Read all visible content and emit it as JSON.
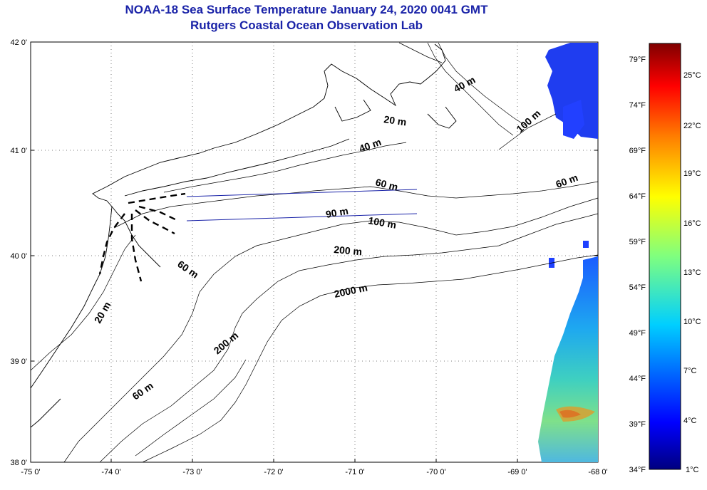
{
  "title": {
    "line1": "NOAA-18 Sea Surface Temperature January 24, 2020 0041 GMT",
    "line2": "Rutgers Coastal Ocean Observation Lab"
  },
  "map": {
    "lat_labels": [
      "42 0'",
      "41 0'",
      "40 0'",
      "39 0'",
      "38 0'"
    ],
    "lon_labels": [
      "-75 0'",
      "-74 0'",
      "-73 0'",
      "-72 0'",
      "-71 0'",
      "-70 0'",
      "-69 0'",
      "-68 0'"
    ],
    "contour_labels": [
      "40 m",
      "100 m",
      "20 m",
      "40 m",
      "60 m",
      "60 m",
      "90 m",
      "100 m",
      "200 m",
      "60 m",
      "2000 m",
      "20 m",
      "200 m",
      "60 m"
    ]
  },
  "colorbar": {
    "fahrenheit": [
      "79°F",
      "74°F",
      "69°F",
      "64°F",
      "59°F",
      "54°F",
      "49°F",
      "44°F",
      "39°F",
      "34°F"
    ],
    "celsius": [
      "25°C",
      "22°C",
      "19°C",
      "16°C",
      "13°C",
      "10°C",
      "7°C",
      "4°C",
      "1°C"
    ],
    "colors": [
      "#00007f",
      "#0000ff",
      "#007fff",
      "#00ffff",
      "#7fff7f",
      "#ffff00",
      "#ff7f00",
      "#ff0000",
      "#7f0000"
    ]
  }
}
